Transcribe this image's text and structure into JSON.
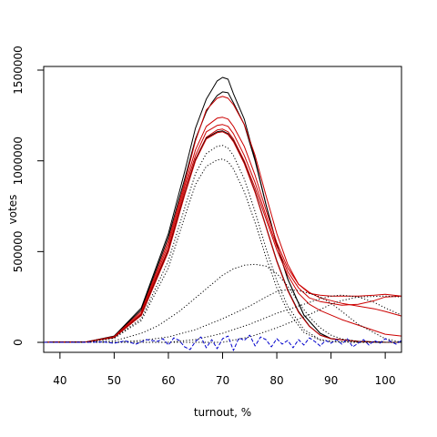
{
  "chart_data": {
    "type": "line",
    "xlabel": "turnout, %",
    "ylabel": "votes",
    "xlim": [
      37,
      103
    ],
    "ylim": [
      -55000,
      1520000
    ],
    "x_ticks": [
      {
        "value": 40,
        "label": "40"
      },
      {
        "value": 50,
        "label": "50"
      },
      {
        "value": 60,
        "label": "60"
      },
      {
        "value": 70,
        "label": "70"
      },
      {
        "value": 80,
        "label": "80"
      },
      {
        "value": 90,
        "label": "90"
      },
      {
        "value": 100,
        "label": "100"
      }
    ],
    "y_ticks": [
      {
        "value": 0,
        "label": "0"
      },
      {
        "value": 500000,
        "label": "500000"
      },
      {
        "value": 1000000,
        "label": "1000000"
      },
      {
        "value": 1500000,
        "label": "1500000"
      }
    ],
    "grid": false,
    "legend": "none",
    "series": [
      {
        "style": "solid",
        "color": "#000000",
        "x": [
          37,
          45,
          50,
          55,
          60,
          63,
          65,
          67,
          68,
          69,
          70,
          71,
          72,
          74,
          76,
          78,
          80,
          82,
          85,
          88,
          90,
          95,
          100,
          103
        ],
        "y": [
          0,
          3000,
          35000,
          190000,
          600000,
          940000,
          1180000,
          1340000,
          1390000,
          1440000,
          1460000,
          1450000,
          1370000,
          1230000,
          1010000,
          760000,
          540000,
          350000,
          150000,
          50000,
          20000,
          5000,
          0,
          0
        ]
      },
      {
        "style": "solid",
        "color": "#000000",
        "x": [
          37,
          45,
          50,
          55,
          60,
          63,
          65,
          67,
          68,
          69,
          70,
          71,
          72,
          74,
          76,
          78,
          80,
          82,
          85,
          88,
          90,
          95,
          100,
          103
        ],
        "y": [
          0,
          3000,
          33000,
          180000,
          580000,
          900000,
          1120000,
          1270000,
          1320000,
          1360000,
          1380000,
          1375000,
          1320000,
          1200000,
          1000000,
          760000,
          540000,
          350000,
          150000,
          50000,
          20000,
          5000,
          0,
          0
        ]
      },
      {
        "style": "solid",
        "color": "#cc0000",
        "x": [
          37,
          45,
          50,
          55,
          60,
          63,
          65,
          67,
          69,
          70,
          71,
          72,
          74,
          76,
          78,
          80,
          82,
          84,
          86,
          88,
          90,
          92,
          95,
          98,
          100,
          103
        ],
        "y": [
          0,
          3000,
          32000,
          170000,
          560000,
          880000,
          1110000,
          1280000,
          1345000,
          1355000,
          1345000,
          1310000,
          1200000,
          1030000,
          810000,
          600000,
          430000,
          320000,
          270000,
          260000,
          255000,
          255000,
          255000,
          260000,
          265000,
          255000
        ]
      },
      {
        "style": "solid",
        "color": "#cc0000",
        "x": [
          37,
          45,
          50,
          55,
          60,
          63,
          65,
          67,
          69,
          70,
          71,
          72,
          74,
          76,
          78,
          80,
          82,
          84,
          86,
          88,
          90,
          92,
          95,
          98,
          100,
          103
        ],
        "y": [
          0,
          3000,
          30000,
          160000,
          540000,
          860000,
          1060000,
          1190000,
          1235000,
          1240000,
          1230000,
          1190000,
          1080000,
          920000,
          730000,
          550000,
          410000,
          320000,
          275000,
          245000,
          230000,
          215000,
          200000,
          185000,
          170000,
          145000
        ]
      },
      {
        "style": "solid",
        "color": "#cc0000",
        "x": [
          37,
          45,
          50,
          55,
          60,
          63,
          65,
          67,
          69,
          70,
          71,
          72,
          74,
          76,
          78,
          80,
          82,
          84,
          86,
          88,
          90,
          92,
          95,
          98,
          100,
          103
        ],
        "y": [
          0,
          2500,
          28000,
          155000,
          520000,
          840000,
          1030000,
          1160000,
          1195000,
          1200000,
          1190000,
          1150000,
          1030000,
          880000,
          700000,
          530000,
          390000,
          300000,
          245000,
          225000,
          215000,
          205000,
          210000,
          230000,
          250000,
          255000
        ]
      },
      {
        "style": "solid",
        "color": "#cc0000",
        "x": [
          37,
          45,
          50,
          55,
          60,
          63,
          65,
          67,
          69,
          70,
          71,
          72,
          74,
          76,
          78,
          80,
          82,
          84,
          86,
          88,
          90,
          92,
          95,
          98,
          100,
          103
        ],
        "y": [
          0,
          2500,
          28000,
          150000,
          510000,
          820000,
          1010000,
          1130000,
          1170000,
          1175000,
          1160000,
          1120000,
          1000000,
          850000,
          680000,
          510000,
          370000,
          270000,
          210000,
          175000,
          150000,
          125000,
          95000,
          65000,
          45000,
          35000
        ]
      },
      {
        "style": "solid",
        "color": "#000000",
        "x": [
          37,
          45,
          50,
          55,
          60,
          63,
          65,
          67,
          69,
          70,
          71,
          72,
          74,
          76,
          78,
          80,
          82,
          84,
          86,
          88,
          90,
          95,
          100,
          103
        ],
        "y": [
          0,
          2500,
          27000,
          150000,
          505000,
          815000,
          1005000,
          1125000,
          1160000,
          1165000,
          1150000,
          1110000,
          990000,
          830000,
          640000,
          450000,
          290000,
          170000,
          90000,
          40000,
          20000,
          5000,
          0,
          0
        ]
      },
      {
        "style": "solid",
        "color": "#cc0000",
        "x": [
          37,
          45,
          50,
          55,
          60,
          63,
          65,
          67,
          69,
          70,
          71,
          72,
          74,
          76,
          78,
          80,
          82,
          84,
          86,
          88,
          90,
          95,
          100,
          103
        ],
        "y": [
          0,
          2500,
          27000,
          148000,
          500000,
          810000,
          1000000,
          1120000,
          1155000,
          1160000,
          1145000,
          1105000,
          985000,
          825000,
          635000,
          445000,
          285000,
          165000,
          88000,
          40000,
          20000,
          5000,
          0,
          0
        ]
      },
      {
        "style": "dotted",
        "color": "#000000",
        "x": [
          37,
          45,
          50,
          55,
          60,
          63,
          65,
          67,
          69,
          70,
          71,
          72,
          74,
          76,
          78,
          80,
          82,
          85,
          88,
          90,
          95,
          100,
          103
        ],
        "y": [
          0,
          2000,
          24000,
          130000,
          450000,
          740000,
          930000,
          1040000,
          1080000,
          1085000,
          1070000,
          1030000,
          900000,
          720000,
          520000,
          340000,
          200000,
          70000,
          15000,
          5000,
          0,
          0,
          0
        ]
      },
      {
        "style": "dotted",
        "color": "#000000",
        "x": [
          37,
          45,
          50,
          55,
          60,
          63,
          65,
          67,
          69,
          70,
          71,
          72,
          74,
          76,
          78,
          80,
          82,
          85,
          88,
          90,
          95,
          100,
          103
        ],
        "y": [
          0,
          2000,
          22000,
          120000,
          410000,
          690000,
          870000,
          970000,
          1005000,
          1010000,
          995000,
          955000,
          830000,
          660000,
          470000,
          300000,
          170000,
          55000,
          12000,
          4000,
          0,
          0,
          0
        ]
      },
      {
        "style": "dotted",
        "color": "#000000",
        "x": [
          37,
          45,
          50,
          55,
          58,
          60,
          62,
          64,
          66,
          68,
          70,
          72,
          74,
          76,
          78,
          80,
          82,
          84,
          86,
          88,
          90,
          92,
          95,
          100,
          103
        ],
        "y": [
          0,
          0,
          8000,
          50000,
          90000,
          130000,
          170000,
          220000,
          270000,
          320000,
          370000,
          405000,
          425000,
          430000,
          420000,
          380000,
          310000,
          220000,
          140000,
          80000,
          40000,
          18000,
          5000,
          0,
          0
        ]
      },
      {
        "style": "dotted",
        "color": "#000000",
        "x": [
          37,
          50,
          55,
          60,
          65,
          70,
          75,
          78,
          80,
          82,
          84,
          86,
          88,
          90,
          92,
          95,
          100,
          103
        ],
        "y": [
          0,
          0,
          10000,
          30000,
          70000,
          130000,
          200000,
          250000,
          280000,
          290000,
          285000,
          270000,
          250000,
          215000,
          170000,
          100000,
          20000,
          0
        ]
      },
      {
        "style": "dotted",
        "color": "#000000",
        "x": [
          37,
          60,
          65,
          70,
          75,
          80,
          85,
          88,
          90,
          92,
          95,
          98,
          100,
          103
        ],
        "y": [
          0,
          0,
          15000,
          50000,
          100000,
          160000,
          210000,
          240000,
          255000,
          260000,
          250000,
          220000,
          190000,
          150000
        ]
      },
      {
        "style": "dotted",
        "color": "#000000",
        "x": [
          37,
          70,
          75,
          80,
          85,
          88,
          90,
          92,
          95,
          100,
          103
        ],
        "y": [
          0,
          0,
          30000,
          80000,
          140000,
          180000,
          210000,
          230000,
          250000,
          255000,
          250000
        ]
      },
      {
        "style": "dashed",
        "color": "#0000cc",
        "x": [
          37,
          45,
          48,
          50,
          52,
          54,
          56,
          58,
          59,
          60,
          61,
          62,
          63,
          64,
          65,
          66,
          67,
          68,
          69,
          70,
          71,
          72,
          73,
          74,
          75,
          76,
          77,
          78,
          79,
          80,
          81,
          82,
          83,
          84,
          85,
          86,
          87,
          88,
          89,
          90,
          91,
          92,
          93,
          94,
          95,
          96,
          97,
          98,
          99,
          100,
          101,
          102,
          103
        ],
        "y": [
          0,
          0,
          2000,
          -5000,
          8000,
          -10000,
          15000,
          5000,
          20000,
          -15000,
          25000,
          10000,
          -25000,
          -40000,
          5000,
          30000,
          -30000,
          15000,
          -35000,
          20000,
          35000,
          -45000,
          25000,
          10000,
          40000,
          -20000,
          30000,
          15000,
          -25000,
          20000,
          -10000,
          10000,
          -30000,
          15000,
          -15000,
          25000,
          5000,
          -20000,
          10000,
          -5000,
          15000,
          -10000,
          20000,
          -25000,
          -5000,
          15000,
          -15000,
          10000,
          -5000,
          20000,
          5000,
          -10000,
          10000
        ]
      }
    ]
  }
}
